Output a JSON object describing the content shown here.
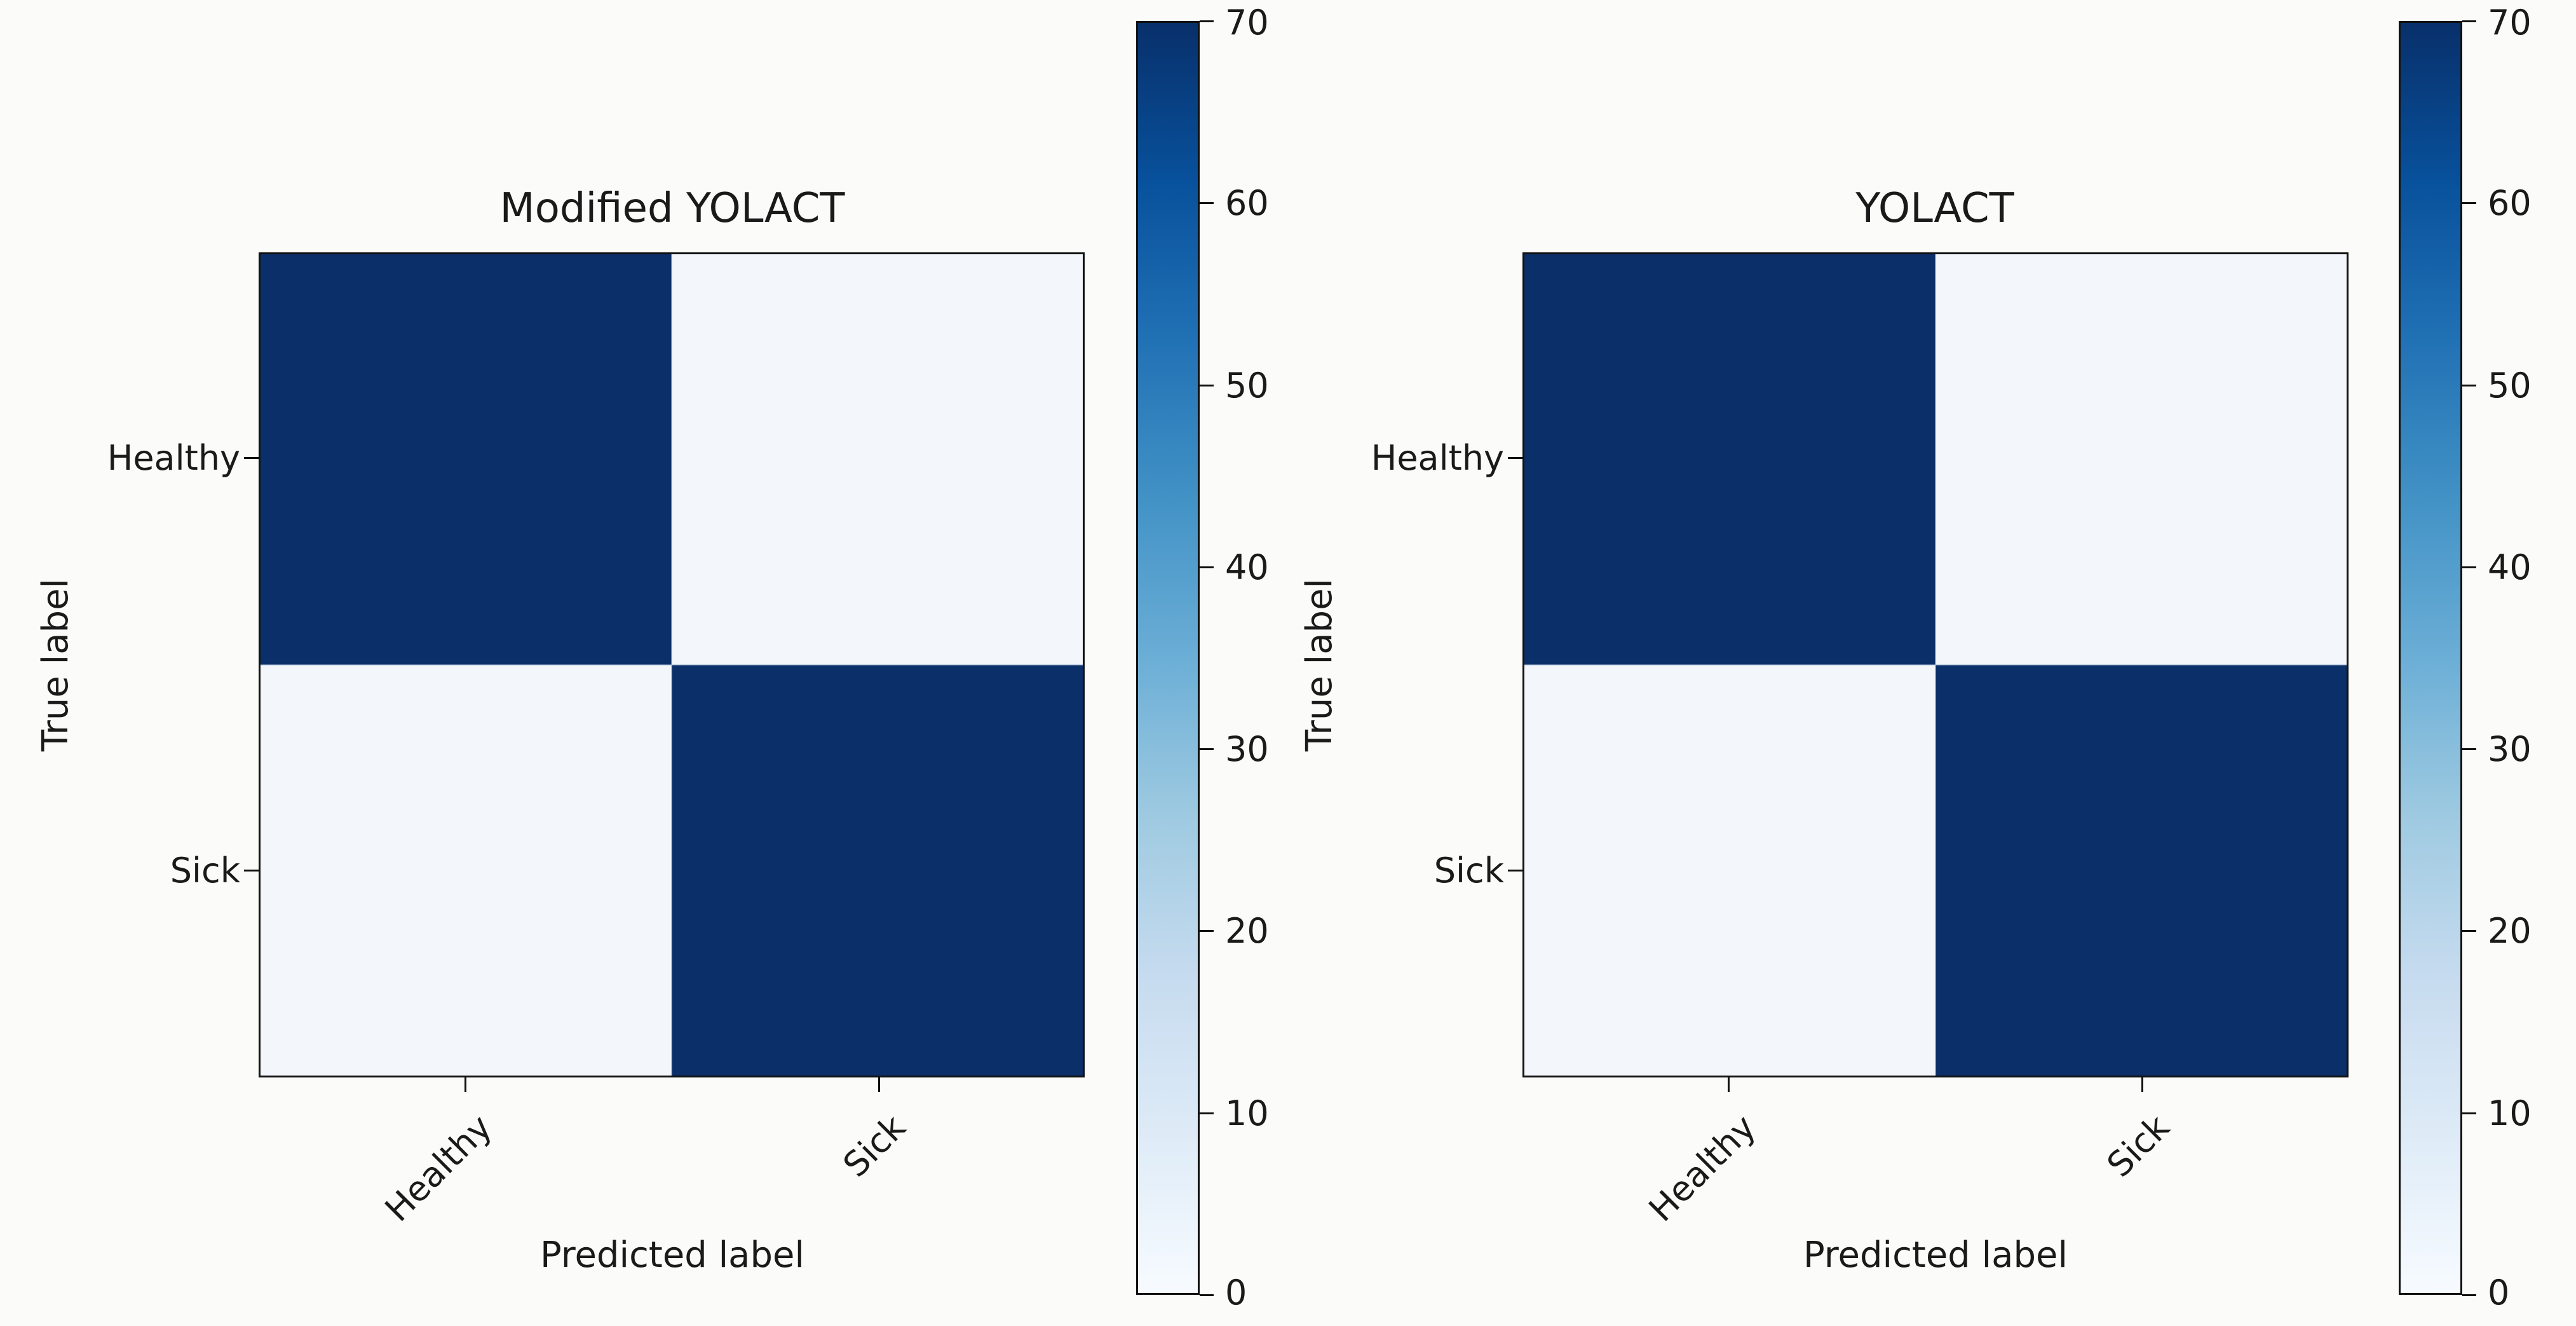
{
  "colors": {
    "background": "#fbfbf9",
    "text": "#1a1a1a",
    "axis": "#111111",
    "cell_hi": "#0b2f68",
    "cell_lo": "#f3f7fc",
    "colorbar_gradient": [
      "#08306b",
      "#08519c",
      "#2171b5",
      "#4292c6",
      "#6baed6",
      "#9ecae1",
      "#c6dbef",
      "#deebf7",
      "#f7fbff"
    ]
  },
  "colorbar": {
    "vmin": 0,
    "vmax": 70,
    "tick_labels": [
      "70",
      "60",
      "50",
      "40",
      "30",
      "20",
      "10",
      "0"
    ]
  },
  "chart_data": [
    {
      "type": "heatmap",
      "title": "Modified YOLACT",
      "xlabel": "Predicted label",
      "ylabel": "True label",
      "x_categories": [
        "Healthy",
        "Sick"
      ],
      "y_categories": [
        "Healthy",
        "Sick"
      ],
      "rows": [
        [
          70,
          0
        ],
        [
          0,
          70
        ]
      ],
      "values_annotated": false,
      "value_note": "cells are not numerically labeled; diagonal cells at colormap max (~70), off-diagonal at ~0",
      "colormap": "Blues",
      "vmin": 0,
      "vmax": 70,
      "colorbar_ticks": [
        0,
        10,
        20,
        30,
        40,
        50,
        60,
        70
      ],
      "colorbar_position": "right",
      "grid": false
    },
    {
      "type": "heatmap",
      "title": "YOLACT",
      "xlabel": "Predicted label",
      "ylabel": "True label",
      "x_categories": [
        "Healthy",
        "Sick"
      ],
      "y_categories": [
        "Healthy",
        "Sick"
      ],
      "rows": [
        [
          70,
          0
        ],
        [
          0,
          70
        ]
      ],
      "values_annotated": false,
      "value_note": "cells are not numerically labeled; diagonal cells at colormap max (~70), off-diagonal at ~0",
      "colormap": "Blues",
      "vmin": 0,
      "vmax": 70,
      "colorbar_ticks": [
        0,
        10,
        20,
        30,
        40,
        50,
        60,
        70
      ],
      "colorbar_position": "right",
      "grid": false
    }
  ]
}
